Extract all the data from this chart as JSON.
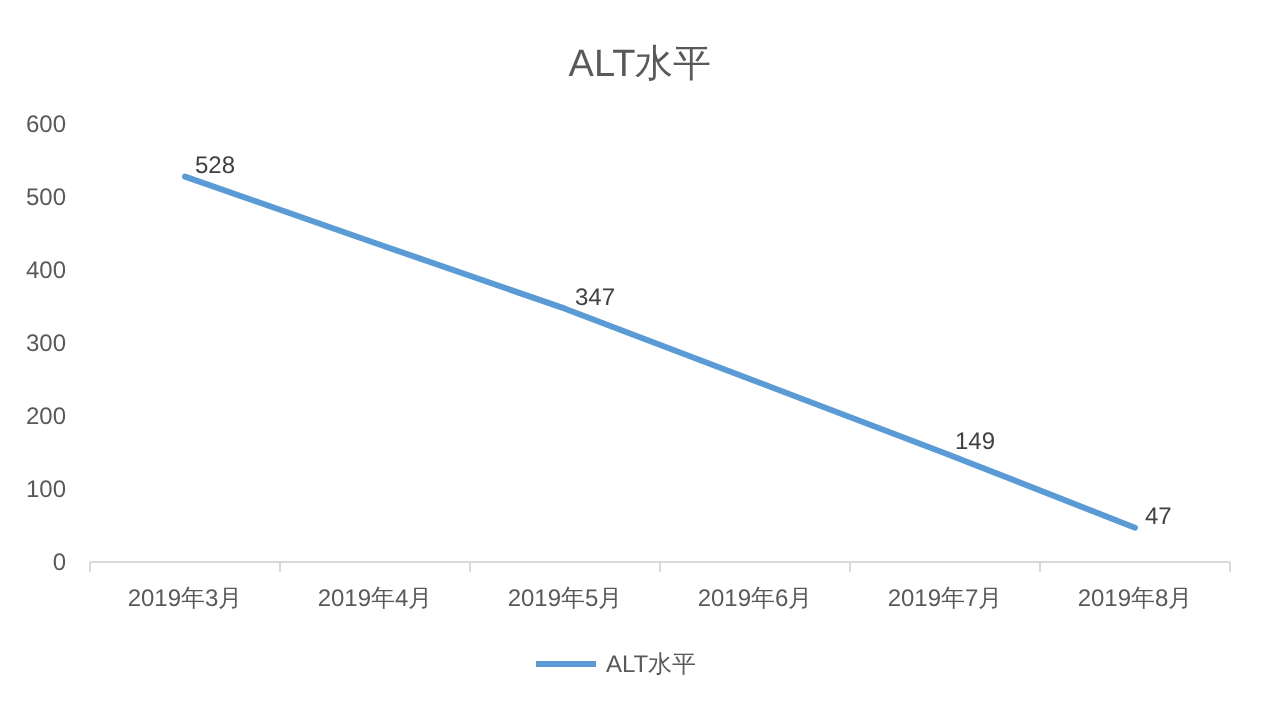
{
  "chart_data": {
    "type": "line",
    "title": "ALT水平",
    "categories": [
      "2019年3月",
      "2019年4月",
      "2019年5月",
      "2019年6月",
      "2019年7月",
      "2019年8月"
    ],
    "series": [
      {
        "name": "ALT水平",
        "color": "#5b9bd5",
        "values": [
          528,
          437,
          347,
          248,
          149,
          47
        ],
        "value_labels": [
          "528",
          null,
          "347",
          null,
          "149",
          "47"
        ]
      }
    ],
    "ylim": [
      0,
      600
    ],
    "yticks": [
      0,
      100,
      200,
      300,
      400,
      500,
      600
    ],
    "legend": "bottom",
    "marker": "none",
    "line_style": "solid"
  }
}
